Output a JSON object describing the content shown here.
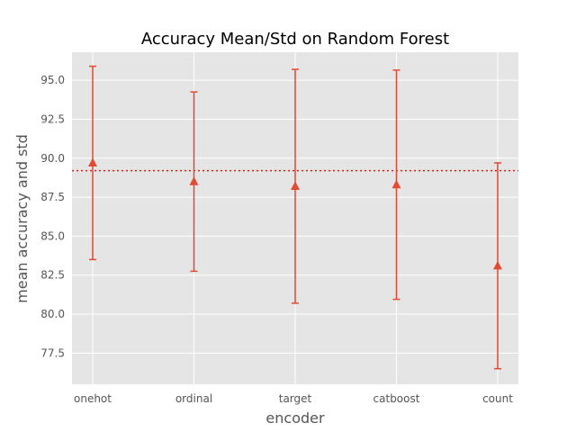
{
  "chart_data": {
    "type": "errorbar",
    "title": "Accuracy Mean/Std on Random Forest",
    "xlabel": "encoder",
    "ylabel": "mean accuracy and std",
    "categories": [
      "onehot",
      "ordinal",
      "target",
      "catboost",
      "count"
    ],
    "series": [
      {
        "values": [
          89.7,
          88.5,
          88.2,
          88.3,
          83.1
        ],
        "std": [
          6.2,
          5.75,
          7.5,
          7.35,
          6.6
        ],
        "marker": "triangle-up",
        "color": "#E24A33"
      }
    ],
    "reference_line": {
      "y": 89.2,
      "style": "dotted",
      "color": "#E01F1F"
    },
    "ylim": [
      75.5,
      96.8
    ],
    "yticks": [
      "77.5",
      "80.0",
      "82.5",
      "85.0",
      "87.5",
      "90.0",
      "92.5",
      "95.0"
    ],
    "grid": true,
    "legend": "none"
  }
}
